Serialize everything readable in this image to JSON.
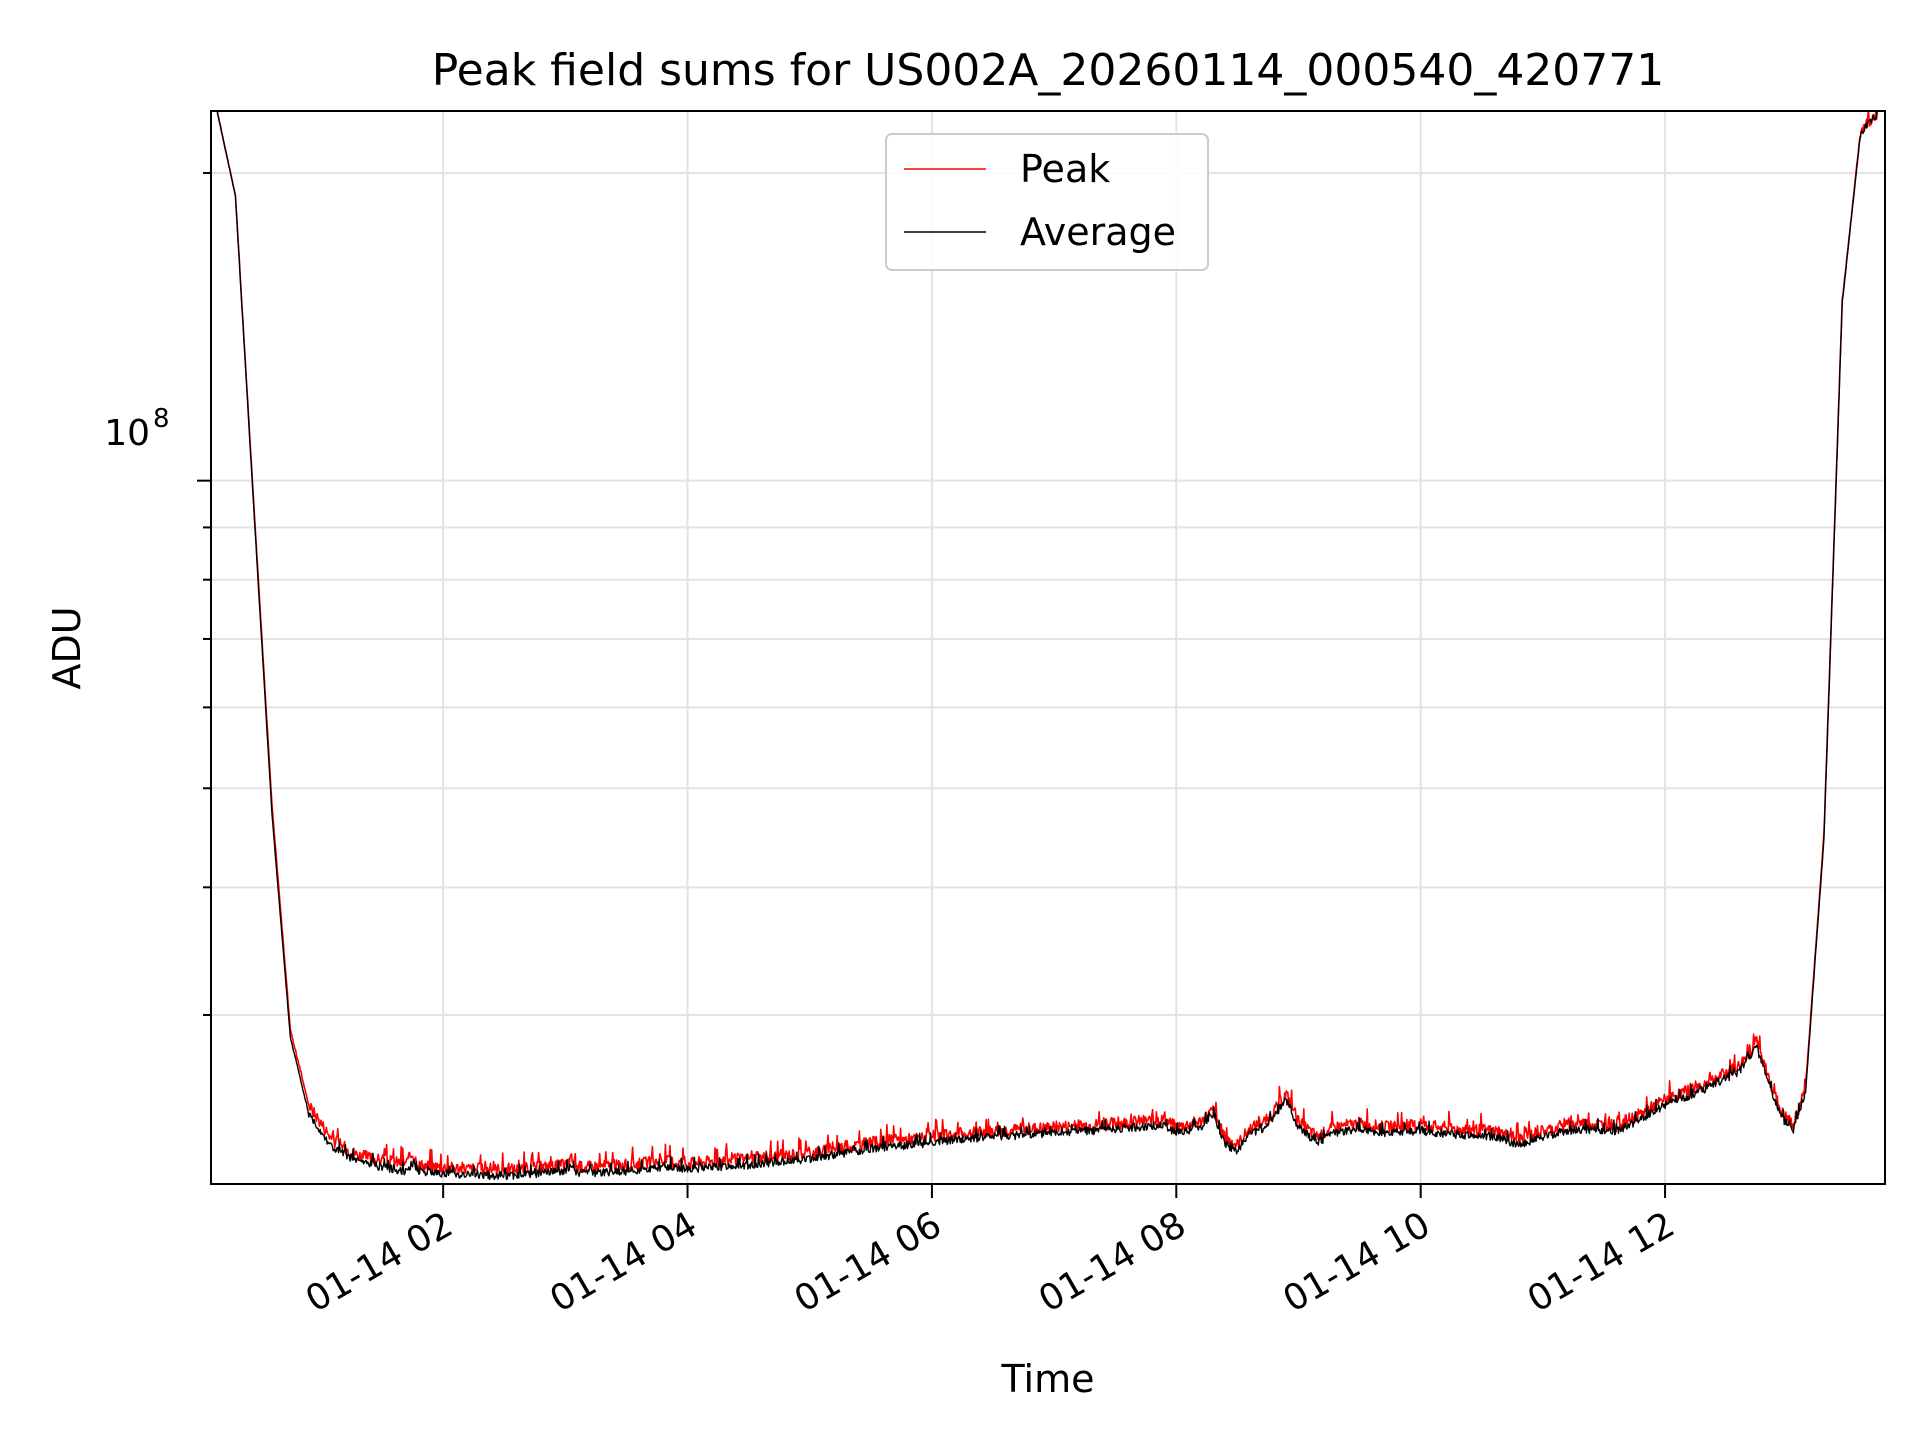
{
  "chart_data": {
    "type": "line",
    "title": "Peak field sums for US002A_20260114_000540_420771",
    "xlabel": "Time",
    "ylabel": "ADU",
    "yscale": "log",
    "ylim": [
      20500000,
      230000000
    ],
    "xlim_hours": [
      0.1,
      13.8
    ],
    "y_tick_label": {
      "base": "10",
      "exponent": "8",
      "value": 100000000
    },
    "x_tick_labels": [
      "01-14 02",
      "01-14 04",
      "01-14 06",
      "01-14 08",
      "01-14 10",
      "01-14 12"
    ],
    "x_tick_hours": [
      2,
      4,
      6,
      8,
      10,
      12
    ],
    "legend": {
      "position": "upper center",
      "entries": [
        "Peak",
        "Average"
      ]
    },
    "grid": true,
    "colors": {
      "Peak": "#ff0000",
      "Average": "#000000"
    },
    "series": [
      {
        "name": "Peak",
        "x_hours": [
          0.15,
          0.3,
          0.45,
          0.6,
          0.75,
          0.9,
          1.1,
          1.3,
          1.5,
          1.7,
          1.75,
          1.8,
          2.0,
          2.3,
          2.6,
          3.0,
          3.05,
          3.1,
          3.5,
          3.8,
          4.0,
          4.5,
          5.0,
          5.5,
          6.0,
          6.5,
          7.0,
          7.5,
          7.9,
          8.0,
          8.2,
          8.3,
          8.4,
          8.5,
          8.6,
          8.75,
          8.9,
          9.0,
          9.15,
          9.3,
          9.5,
          9.7,
          10.0,
          10.3,
          10.6,
          10.8,
          11.0,
          11.3,
          11.6,
          11.8,
          12.0,
          12.3,
          12.6,
          12.75,
          12.85,
          12.95,
          13.05,
          13.15,
          13.3,
          13.45,
          13.6,
          13.75
        ],
        "values": [
          230000000,
          190000000,
          95000000,
          48000000,
          29000000,
          24500000,
          22600000,
          21900000,
          21600000,
          21500000,
          22000000,
          21400000,
          21300000,
          21200000,
          21200000,
          21400000,
          21700000,
          21300000,
          21400000,
          21600000,
          21500000,
          21700000,
          22000000,
          22500000,
          22800000,
          23100000,
          23300000,
          23500000,
          23700000,
          23300000,
          23600000,
          24200000,
          22700000,
          22400000,
          23200000,
          23700000,
          25100000,
          23600000,
          22800000,
          23300000,
          23500000,
          23300000,
          23400000,
          23200000,
          23100000,
          22700000,
          23100000,
          23500000,
          23400000,
          24000000,
          24800000,
          25600000,
          26700000,
          28200000,
          26000000,
          24100000,
          23400000,
          25500000,
          45000000,
          150000000,
          220000000,
          230000000
        ]
      },
      {
        "name": "Average",
        "x_hours": [
          0.15,
          0.3,
          0.45,
          0.6,
          0.75,
          0.9,
          1.1,
          1.3,
          1.5,
          1.7,
          1.75,
          1.8,
          2.0,
          2.3,
          2.6,
          3.0,
          3.05,
          3.1,
          3.5,
          3.8,
          4.0,
          4.5,
          5.0,
          5.5,
          6.0,
          6.5,
          7.0,
          7.5,
          7.9,
          8.0,
          8.2,
          8.3,
          8.4,
          8.5,
          8.6,
          8.75,
          8.9,
          9.0,
          9.15,
          9.3,
          9.5,
          9.7,
          10.0,
          10.3,
          10.6,
          10.8,
          11.0,
          11.3,
          11.6,
          11.8,
          12.0,
          12.3,
          12.6,
          12.75,
          12.85,
          12.95,
          13.05,
          13.15,
          13.3,
          13.45,
          13.6,
          13.75
        ],
        "values": [
          230000000,
          190000000,
          94000000,
          47000000,
          28500000,
          24000000,
          22200000,
          21600000,
          21300000,
          21100000,
          21500000,
          21100000,
          21000000,
          20900000,
          20900000,
          21100000,
          21400000,
          21000000,
          21100000,
          21300000,
          21200000,
          21400000,
          21700000,
          22200000,
          22500000,
          22800000,
          23000000,
          23200000,
          23400000,
          23000000,
          23300000,
          23900000,
          22400000,
          22100000,
          22900000,
          23400000,
          24800000,
          23300000,
          22500000,
          23000000,
          23200000,
          23000000,
          23100000,
          22900000,
          22800000,
          22400000,
          22800000,
          23200000,
          23100000,
          23700000,
          24500000,
          25300000,
          26400000,
          27900000,
          25700000,
          23800000,
          23100000,
          25200000,
          44500000,
          149000000,
          219000000,
          230000000
        ]
      }
    ]
  }
}
